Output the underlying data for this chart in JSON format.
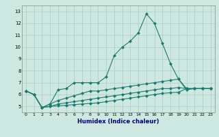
{
  "xlabel": "Humidex (Indice chaleur)",
  "x_values": [
    0,
    1,
    2,
    3,
    4,
    5,
    6,
    7,
    8,
    9,
    10,
    11,
    12,
    13,
    14,
    15,
    16,
    17,
    18,
    19,
    20,
    21,
    22,
    23
  ],
  "series": [
    [
      6.3,
      6.0,
      4.9,
      5.2,
      6.4,
      6.5,
      7.0,
      7.0,
      7.0,
      7.0,
      7.5,
      9.3,
      10.0,
      10.5,
      11.2,
      12.8,
      12.0,
      10.3,
      8.6,
      7.3,
      6.4,
      6.5,
      6.5,
      6.5
    ],
    [
      6.3,
      6.0,
      4.9,
      5.2,
      5.5,
      5.7,
      5.9,
      6.1,
      6.3,
      6.3,
      6.4,
      6.5,
      6.6,
      6.7,
      6.8,
      6.9,
      7.0,
      7.1,
      7.2,
      7.3,
      6.5,
      6.5,
      6.5,
      6.5
    ],
    [
      6.3,
      6.0,
      4.9,
      5.0,
      5.2,
      5.3,
      5.4,
      5.5,
      5.6,
      5.7,
      5.8,
      5.9,
      6.0,
      6.1,
      6.2,
      6.3,
      6.4,
      6.5,
      6.5,
      6.6,
      6.5,
      6.5,
      6.5,
      6.5
    ],
    [
      6.3,
      6.0,
      4.9,
      5.0,
      5.05,
      5.1,
      5.15,
      5.2,
      5.25,
      5.3,
      5.4,
      5.5,
      5.6,
      5.7,
      5.8,
      5.9,
      6.0,
      6.1,
      6.15,
      6.2,
      6.5,
      6.5,
      6.5,
      6.5
    ]
  ],
  "line_color": "#1a7a6e",
  "marker": "D",
  "markersize": 2,
  "ylim": [
    4.5,
    13.5
  ],
  "yticks": [
    5,
    6,
    7,
    8,
    9,
    10,
    11,
    12,
    13
  ],
  "bg_color": "#cce8e0",
  "grid_color": "#aaccc4",
  "linewidth": 0.8,
  "label_color": "#000080"
}
